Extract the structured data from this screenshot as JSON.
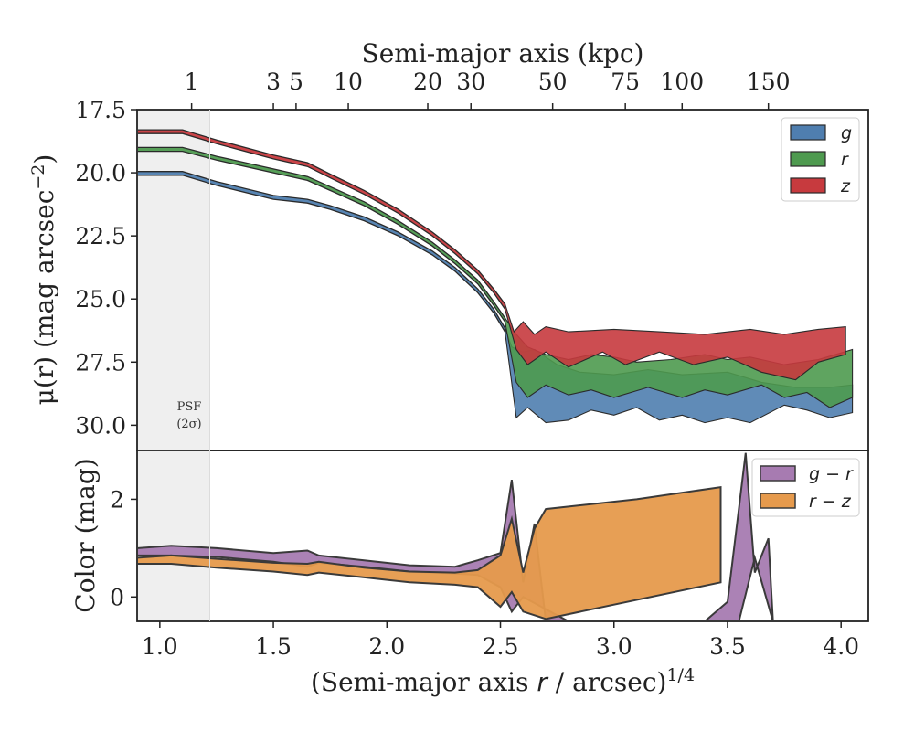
{
  "chart_data": [
    {
      "type": "area",
      "panel": "surface-brightness",
      "title": "",
      "top_xlabel": "Semi-major axis (kpc)",
      "ylabel_prefix": "μ(r) (mag arcsec",
      "ylabel_exp": "−2",
      "ylabel_suffix": ")",
      "xlim": [
        0.9,
        4.12
      ],
      "ylim": [
        31.0,
        17.5
      ],
      "y_inverted": true,
      "yticks": [
        17.5,
        20.0,
        22.5,
        25.0,
        27.5,
        30.0
      ],
      "ytick_labels": [
        "17.5",
        "20.0",
        "22.5",
        "25.0",
        "27.5",
        "30.0"
      ],
      "top_ticks_kpc": [
        1,
        3,
        5,
        10,
        20,
        30,
        50,
        75,
        100,
        150
      ],
      "top_tick_labels": [
        "1",
        "3",
        "5",
        "10",
        "20",
        "30",
        "50",
        "75",
        "100",
        "150"
      ],
      "top_tick_x": [
        1.14,
        1.5,
        1.6,
        1.83,
        2.18,
        2.37,
        2.73,
        3.05,
        3.3,
        3.68
      ],
      "psf_band": {
        "x_range": [
          0.9,
          1.22
        ],
        "label_line1": "PSF",
        "label_line2": "(2σ)"
      },
      "legend": {
        "placement": "top-right",
        "entries": [
          {
            "label": "g",
            "color": "#4f7eaf"
          },
          {
            "label": "r",
            "color": "#4e9a4f"
          },
          {
            "label": "z",
            "color": "#c73a3e"
          }
        ]
      },
      "series": [
        {
          "name": "g",
          "color": "#4f7eaf",
          "upper": [
            [
              0.9,
              19.95
            ],
            [
              1.1,
              19.95
            ],
            [
              1.25,
              20.35
            ],
            [
              1.5,
              20.9
            ],
            [
              1.65,
              21.05
            ],
            [
              1.75,
              21.3
            ],
            [
              1.9,
              21.75
            ],
            [
              2.05,
              22.35
            ],
            [
              2.2,
              23.1
            ],
            [
              2.3,
              23.75
            ],
            [
              2.4,
              24.6
            ],
            [
              2.47,
              25.4
            ],
            [
              2.52,
              26.15
            ]
          ],
          "lower": [
            [
              2.52,
              26.3
            ],
            [
              2.47,
              25.55
            ],
            [
              2.4,
              24.75
            ],
            [
              2.3,
              23.9
            ],
            [
              2.2,
              23.25
            ],
            [
              2.05,
              22.5
            ],
            [
              1.9,
              21.9
            ],
            [
              1.75,
              21.45
            ],
            [
              1.65,
              21.2
            ],
            [
              1.5,
              21.05
            ],
            [
              1.25,
              20.5
            ],
            [
              1.1,
              20.1
            ],
            [
              0.9,
              20.1
            ]
          ],
          "noisy_upper": [
            [
              2.52,
              26.15
            ],
            [
              2.55,
              26.9
            ],
            [
              2.6,
              27.1
            ],
            [
              2.65,
              27.0
            ],
            [
              2.75,
              27.6
            ],
            [
              2.85,
              27.9
            ],
            [
              3.0,
              28.0
            ],
            [
              3.15,
              27.8
            ],
            [
              3.3,
              28.0
            ],
            [
              3.5,
              27.9
            ],
            [
              3.65,
              28.3
            ],
            [
              3.8,
              28.5
            ],
            [
              3.95,
              28.5
            ],
            [
              4.05,
              28.4
            ]
          ],
          "noisy_lower": [
            [
              4.05,
              29.5
            ],
            [
              3.95,
              29.7
            ],
            [
              3.85,
              29.4
            ],
            [
              3.75,
              29.2
            ],
            [
              3.6,
              29.9
            ],
            [
              3.5,
              29.7
            ],
            [
              3.4,
              29.9
            ],
            [
              3.3,
              29.6
            ],
            [
              3.2,
              29.8
            ],
            [
              3.1,
              29.3
            ],
            [
              3.0,
              29.6
            ],
            [
              2.9,
              29.4
            ],
            [
              2.8,
              29.8
            ],
            [
              2.7,
              29.9
            ],
            [
              2.62,
              29.3
            ],
            [
              2.57,
              29.7
            ],
            [
              2.52,
              26.3
            ]
          ]
        },
        {
          "name": "r",
          "color": "#4e9a4f",
          "upper": [
            [
              0.9,
              19.0
            ],
            [
              1.1,
              19.0
            ],
            [
              1.25,
              19.35
            ],
            [
              1.5,
              19.85
            ],
            [
              1.65,
              20.15
            ],
            [
              1.75,
              20.55
            ],
            [
              1.9,
              21.15
            ],
            [
              2.05,
              21.9
            ],
            [
              2.2,
              22.75
            ],
            [
              2.3,
              23.45
            ],
            [
              2.4,
              24.25
            ],
            [
              2.47,
              25.1
            ],
            [
              2.52,
              25.75
            ]
          ],
          "lower": [
            [
              2.52,
              25.9
            ],
            [
              2.47,
              25.25
            ],
            [
              2.4,
              24.4
            ],
            [
              2.3,
              23.6
            ],
            [
              2.2,
              22.9
            ],
            [
              2.05,
              22.05
            ],
            [
              1.9,
              21.3
            ],
            [
              1.75,
              20.7
            ],
            [
              1.65,
              20.3
            ],
            [
              1.5,
              20.0
            ],
            [
              1.25,
              19.5
            ],
            [
              1.1,
              19.15
            ],
            [
              0.9,
              19.15
            ]
          ],
          "noisy_upper": [
            [
              2.52,
              25.75
            ],
            [
              2.57,
              26.4
            ],
            [
              2.62,
              26.9
            ],
            [
              2.7,
              27.2
            ],
            [
              2.8,
              27.4
            ],
            [
              2.9,
              27.2
            ],
            [
              3.0,
              27.3
            ],
            [
              3.1,
              27.5
            ],
            [
              3.25,
              27.4
            ],
            [
              3.4,
              27.2
            ],
            [
              3.5,
              27.4
            ],
            [
              3.6,
              27.3
            ],
            [
              3.75,
              27.6
            ],
            [
              3.9,
              27.4
            ],
            [
              4.05,
              27.0
            ]
          ],
          "noisy_lower": [
            [
              4.05,
              28.9
            ],
            [
              3.95,
              29.3
            ],
            [
              3.85,
              28.7
            ],
            [
              3.75,
              28.9
            ],
            [
              3.65,
              28.4
            ],
            [
              3.5,
              28.8
            ],
            [
              3.4,
              28.6
            ],
            [
              3.3,
              28.9
            ],
            [
              3.15,
              28.5
            ],
            [
              3.0,
              28.9
            ],
            [
              2.9,
              28.6
            ],
            [
              2.8,
              28.8
            ],
            [
              2.7,
              28.4
            ],
            [
              2.62,
              28.9
            ],
            [
              2.57,
              28.3
            ],
            [
              2.52,
              25.9
            ]
          ]
        },
        {
          "name": "z",
          "color": "#c73a3e",
          "upper": [
            [
              0.9,
              18.3
            ],
            [
              1.1,
              18.3
            ],
            [
              1.25,
              18.7
            ],
            [
              1.5,
              19.3
            ],
            [
              1.65,
              19.6
            ],
            [
              1.75,
              20.05
            ],
            [
              1.9,
              20.7
            ],
            [
              2.05,
              21.45
            ],
            [
              2.2,
              22.35
            ],
            [
              2.3,
              23.05
            ],
            [
              2.4,
              23.85
            ],
            [
              2.47,
              24.6
            ],
            [
              2.52,
              25.2
            ]
          ],
          "lower": [
            [
              2.52,
              25.4
            ],
            [
              2.47,
              24.75
            ],
            [
              2.4,
              24.0
            ],
            [
              2.3,
              23.2
            ],
            [
              2.2,
              22.5
            ],
            [
              2.05,
              21.6
            ],
            [
              1.9,
              20.85
            ],
            [
              1.75,
              20.2
            ],
            [
              1.65,
              19.75
            ],
            [
              1.5,
              19.45
            ],
            [
              1.25,
              18.85
            ],
            [
              1.1,
              18.45
            ],
            [
              0.9,
              18.45
            ]
          ],
          "noisy_upper": [
            [
              2.52,
              25.2
            ],
            [
              2.56,
              26.3
            ],
            [
              2.6,
              25.9
            ],
            [
              2.65,
              26.4
            ],
            [
              2.7,
              26.1
            ],
            [
              2.8,
              26.3
            ],
            [
              3.0,
              26.2
            ],
            [
              3.2,
              26.3
            ],
            [
              3.4,
              26.4
            ],
            [
              3.6,
              26.2
            ],
            [
              3.75,
              26.4
            ],
            [
              3.9,
              26.2
            ],
            [
              4.02,
              26.1
            ]
          ],
          "noisy_lower": [
            [
              4.02,
              27.2
            ],
            [
              3.9,
              27.5
            ],
            [
              3.8,
              28.2
            ],
            [
              3.65,
              27.9
            ],
            [
              3.5,
              27.3
            ],
            [
              3.35,
              27.6
            ],
            [
              3.2,
              27.1
            ],
            [
              3.05,
              27.6
            ],
            [
              2.95,
              27.1
            ],
            [
              2.8,
              27.7
            ],
            [
              2.7,
              27.1
            ],
            [
              2.62,
              27.6
            ],
            [
              2.57,
              27.0
            ],
            [
              2.52,
              25.4
            ]
          ]
        }
      ]
    },
    {
      "type": "area",
      "panel": "color",
      "title": "",
      "xlabel_main": "(Semi-major axis ",
      "xlabel_var": "r",
      "xlabel_tail": " / arcsec)",
      "xlabel_exp": "1/4",
      "ylabel": "Color (mag)",
      "xlim": [
        0.9,
        4.12
      ],
      "ylim": [
        -0.5,
        3.0
      ],
      "xticks": [
        1.0,
        1.5,
        2.0,
        2.5,
        3.0,
        3.5,
        4.0
      ],
      "xtick_labels": [
        "1.0",
        "1.5",
        "2.0",
        "2.5",
        "3.0",
        "3.5",
        "4.0"
      ],
      "yticks": [
        0,
        2
      ],
      "ytick_labels": [
        "0",
        "2"
      ],
      "legend": {
        "placement": "top-right",
        "entries": [
          {
            "label": "g − r",
            "color": "#a77bb1"
          },
          {
            "label": "r − z",
            "color": "#e69a4c"
          }
        ]
      },
      "series": [
        {
          "name": "g − r",
          "color": "#a77bb1",
          "polygon": [
            [
              0.9,
              1.0
            ],
            [
              1.05,
              1.05
            ],
            [
              1.25,
              1.0
            ],
            [
              1.5,
              0.9
            ],
            [
              1.65,
              0.95
            ],
            [
              1.7,
              0.85
            ],
            [
              1.9,
              0.75
            ],
            [
              2.1,
              0.65
            ],
            [
              2.3,
              0.62
            ],
            [
              2.4,
              0.75
            ],
            [
              2.5,
              0.9
            ],
            [
              2.55,
              2.4
            ],
            [
              2.6,
              0.3
            ],
            [
              2.65,
              1.5
            ],
            [
              2.7,
              -0.5
            ],
            [
              3.4,
              -0.5
            ],
            [
              3.5,
              -0.1
            ],
            [
              3.58,
              2.95
            ],
            [
              3.62,
              0.5
            ],
            [
              3.68,
              1.2
            ],
            [
              3.7,
              -0.5
            ],
            [
              3.62,
              0.8
            ],
            [
              3.55,
              -0.5
            ],
            [
              3.3,
              -0.5
            ],
            [
              2.8,
              -0.5
            ],
            [
              2.68,
              -0.2
            ],
            [
              2.6,
              0.0
            ],
            [
              2.55,
              -0.3
            ],
            [
              2.5,
              0.2
            ],
            [
              2.4,
              0.45
            ],
            [
              2.3,
              0.48
            ],
            [
              2.1,
              0.52
            ],
            [
              1.9,
              0.62
            ],
            [
              1.7,
              0.7
            ],
            [
              1.65,
              0.62
            ],
            [
              1.5,
              0.72
            ],
            [
              1.25,
              0.82
            ],
            [
              1.05,
              0.85
            ],
            [
              0.9,
              0.85
            ]
          ]
        },
        {
          "name": "r − z",
          "color": "#e69a4c",
          "polygon": [
            [
              0.9,
              0.8
            ],
            [
              1.05,
              0.85
            ],
            [
              1.25,
              0.78
            ],
            [
              1.5,
              0.7
            ],
            [
              1.65,
              0.68
            ],
            [
              1.7,
              0.72
            ],
            [
              1.9,
              0.6
            ],
            [
              2.1,
              0.52
            ],
            [
              2.3,
              0.5
            ],
            [
              2.4,
              0.55
            ],
            [
              2.5,
              0.85
            ],
            [
              2.55,
              1.6
            ],
            [
              2.6,
              0.5
            ],
            [
              2.65,
              1.4
            ],
            [
              2.7,
              1.8
            ],
            [
              3.1,
              2.0
            ],
            [
              3.47,
              2.25
            ],
            [
              3.47,
              0.3
            ],
            [
              2.7,
              -0.45
            ],
            [
              2.6,
              -0.3
            ],
            [
              2.55,
              0.1
            ],
            [
              2.5,
              -0.2
            ],
            [
              2.4,
              0.2
            ],
            [
              2.3,
              0.25
            ],
            [
              2.1,
              0.3
            ],
            [
              1.9,
              0.4
            ],
            [
              1.7,
              0.5
            ],
            [
              1.65,
              0.45
            ],
            [
              1.5,
              0.52
            ],
            [
              1.25,
              0.6
            ],
            [
              1.05,
              0.68
            ],
            [
              0.9,
              0.68
            ]
          ]
        }
      ]
    }
  ]
}
